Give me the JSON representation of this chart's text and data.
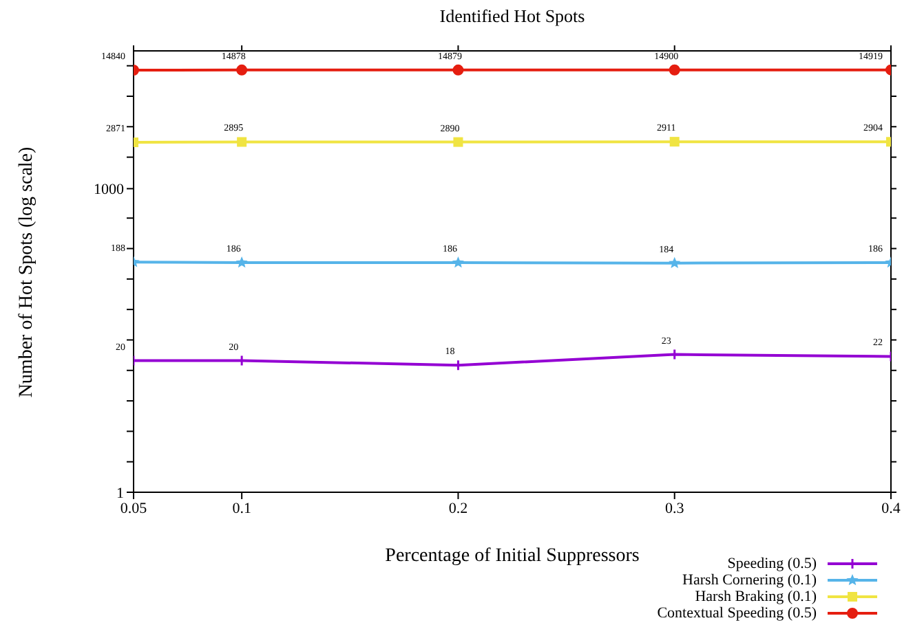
{
  "chart_data": {
    "type": "line",
    "title": "Identified Hot Spots",
    "xlabel": "Percentage of Initial Suppressors",
    "ylabel": "Number of Hot Spots (log scale)",
    "x": [
      0.05,
      0.1,
      0.2,
      0.3,
      0.4
    ],
    "xlim": [
      0.05,
      0.4
    ],
    "xticks": [
      0.05,
      0.1,
      0.2,
      0.3,
      0.4
    ],
    "ylim": [
      1,
      23000
    ],
    "log": "y",
    "yticks": [
      1,
      {
        "value": 2,
        "label": null
      },
      {
        "value": 4,
        "label": null
      },
      {
        "value": 8,
        "label": null
      },
      {
        "value": 16,
        "label": null
      },
      {
        "value": 32,
        "label": null
      },
      {
        "value": 64,
        "label": null
      },
      {
        "value": 128,
        "label": null
      },
      {
        "value": 256,
        "label": null
      },
      {
        "value": 512,
        "label": null
      },
      1000,
      {
        "value": 2048,
        "label": null
      },
      {
        "value": 4096,
        "label": null
      },
      {
        "value": 8192,
        "label": null
      },
      {
        "value": 16384,
        "label": null
      }
    ],
    "grid": false,
    "legend": "bottom right",
    "data_labels": true,
    "line_style": "solid",
    "series": [
      {
        "name": "Speeding (0.5)",
        "color": "#9400d3",
        "marker": "cross",
        "values": [
          20,
          20,
          18,
          23,
          22
        ]
      },
      {
        "name": "Harsh Cornering (0.1)",
        "color": "#56b4e9",
        "marker": "star",
        "values": [
          188,
          186,
          186,
          184,
          186
        ]
      },
      {
        "name": "Harsh Braking (0.1)",
        "color": "#f0e442",
        "marker": "square",
        "values": [
          2871,
          2895,
          2890,
          2911,
          2904
        ]
      },
      {
        "name": "Contextual Speeding (0.5)",
        "color": "#e51e10",
        "marker": "circle",
        "values": [
          14840,
          14878,
          14879,
          14900,
          14919
        ]
      }
    ]
  }
}
